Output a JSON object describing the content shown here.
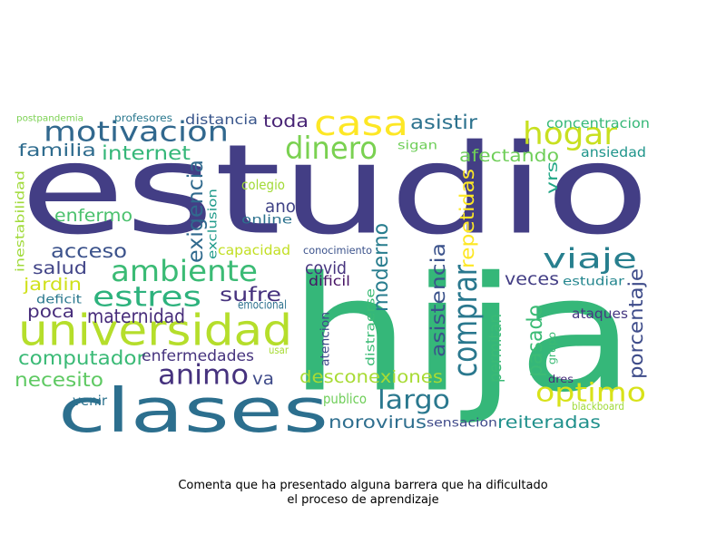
{
  "caption": {
    "line1": "Comenta que ha presentado alguna barrera que ha dificultado",
    "line2": "el proceso de aprendizaje"
  },
  "words": [
    {
      "text": "estudio",
      "color": "#433e85"
    },
    {
      "text": "hija",
      "color": "#35b779"
    },
    {
      "text": "clases",
      "color": "#2c6f8e"
    },
    {
      "text": "universidad",
      "color": "#b5de2b"
    },
    {
      "text": "casa",
      "color": "#fde725"
    },
    {
      "text": "motivacion",
      "color": "#31688e"
    },
    {
      "text": "hogar",
      "color": "#c8e020"
    },
    {
      "text": "dinero",
      "color": "#7ad151"
    },
    {
      "text": "ambiente",
      "color": "#3bbb75"
    },
    {
      "text": "estres",
      "color": "#2db27d"
    },
    {
      "text": "viaje",
      "color": "#277f8e"
    },
    {
      "text": "optimo",
      "color": "#d8e219"
    },
    {
      "text": "animo",
      "color": "#46327e"
    },
    {
      "text": "largo",
      "color": "#2a788e"
    },
    {
      "text": "comprar",
      "color": "#2a788e"
    },
    {
      "text": "internet",
      "color": "#35b779"
    },
    {
      "text": "familia",
      "color": "#2f6c8e"
    },
    {
      "text": "computador",
      "color": "#3aba76"
    },
    {
      "text": "sufre",
      "color": "#46327e"
    },
    {
      "text": "asistir",
      "color": "#2c728e"
    },
    {
      "text": "toda",
      "color": "#482475"
    },
    {
      "text": "covid",
      "color": "#46337e"
    },
    {
      "text": "acceso",
      "color": "#3b528b"
    },
    {
      "text": "salud",
      "color": "#414487"
    },
    {
      "text": "jardin",
      "color": "#d0e11c"
    },
    {
      "text": "poca",
      "color": "#472d7b"
    },
    {
      "text": "maternidad",
      "color": "#472c7a"
    },
    {
      "text": "enfermedades",
      "color": "#46337e"
    },
    {
      "text": "necesito",
      "color": "#5ec962"
    },
    {
      "text": "va",
      "color": "#3e4a89"
    },
    {
      "text": "desconexiones",
      "color": "#a8db34"
    },
    {
      "text": "reiteradas",
      "color": "#21918c"
    },
    {
      "text": "norovirus",
      "color": "#2e6e8e"
    },
    {
      "text": "afectando",
      "color": "#6ece58"
    },
    {
      "text": "enfermo",
      "color": "#4ac16d"
    },
    {
      "text": "exigencia",
      "color": "#306a8e"
    },
    {
      "text": "ano",
      "color": "#414487"
    },
    {
      "text": "moderno",
      "color": "#287d8e"
    },
    {
      "text": "asistencia",
      "color": "#3b528b"
    },
    {
      "text": "repetidas",
      "color": "#fde725"
    },
    {
      "text": "pasado",
      "color": "#3bbb75"
    },
    {
      "text": "veces",
      "color": "#433e85"
    },
    {
      "text": "porcentaje",
      "color": "#3e4c8a"
    },
    {
      "text": "permitan",
      "color": "#3aba76"
    },
    {
      "text": "vrs",
      "color": "#21a685"
    },
    {
      "text": "ansiedad",
      "color": "#1f958b"
    },
    {
      "text": "concentracion",
      "color": "#37b878"
    },
    {
      "text": "distancia",
      "color": "#39568c"
    },
    {
      "text": "profesores",
      "color": "#2a788e"
    },
    {
      "text": "postpandemia",
      "color": "#7ad151"
    },
    {
      "text": "sigan",
      "color": "#6ece58"
    },
    {
      "text": "colegio",
      "color": "#a2da37"
    },
    {
      "text": "online",
      "color": "#2c728e"
    },
    {
      "text": "exclusion",
      "color": "#1f9a8a"
    },
    {
      "text": "inestabilidad",
      "color": "#a0da39"
    },
    {
      "text": "capacidad",
      "color": "#c2df23"
    },
    {
      "text": "conocimiento",
      "color": "#3b528b"
    },
    {
      "text": "dificil",
      "color": "#471365"
    },
    {
      "text": "deficit",
      "color": "#2a788e"
    },
    {
      "text": "emocional",
      "color": "#2d718e"
    },
    {
      "text": "distraerse",
      "color": "#3bbb75"
    },
    {
      "text": "atencion",
      "color": "#3e4a89"
    },
    {
      "text": "usar",
      "color": "#a8db34"
    },
    {
      "text": "grupo",
      "color": "#3bbb75"
    },
    {
      "text": "ataques",
      "color": "#453882"
    },
    {
      "text": "estudiar",
      "color": "#24868e"
    },
    {
      "text": "venir",
      "color": "#2c728e"
    },
    {
      "text": "publico",
      "color": "#6ece58"
    },
    {
      "text": "sensacion",
      "color": "#3e4989"
    },
    {
      "text": "dres",
      "color": "#472c7a"
    },
    {
      "text": "blackboard",
      "color": "#a0da39"
    }
  ]
}
